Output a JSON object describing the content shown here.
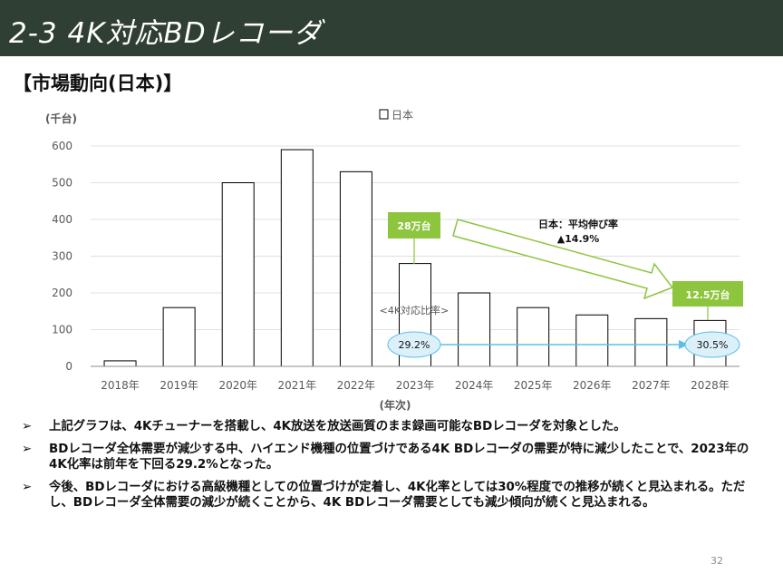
{
  "header": {
    "title": "2-3 4K対応BDレコーダ"
  },
  "section": {
    "title": "【市場動向(日本)】"
  },
  "chart_data": {
    "type": "bar",
    "categories": [
      "2018年",
      "2019年",
      "2020年",
      "2021年",
      "2022年",
      "2023年",
      "2024年",
      "2025年",
      "2026年",
      "2027年",
      "2028年"
    ],
    "series": [
      {
        "name": "日本",
        "values": [
          15,
          160,
          500,
          590,
          530,
          280,
          200,
          160,
          140,
          130,
          125
        ]
      }
    ],
    "ylabel": "(千台)",
    "xlabel": "(年次)",
    "ylim": [
      0,
      600
    ],
    "yticks": [
      0,
      100,
      200,
      300,
      400,
      500,
      600
    ],
    "legend": {
      "position": "top-center",
      "label": "日本"
    },
    "grid": true,
    "colors": {
      "bar_fill": "#ffffff",
      "bar_stroke": "#000000",
      "callout": "#8dc53e",
      "ratio_line": "#5bbfe8",
      "ratio_ellipse": "#dcf0fa",
      "grid": "#e0e0e0"
    },
    "annotations": {
      "callout_2023": "28万台",
      "callout_2028": "12.5万台",
      "growth_label": "日本：平均伸び率",
      "growth_value": "▲14.9%",
      "ratio_label": "<4K対応比率>",
      "ratio_start": "29.2%",
      "ratio_end": "30.5%"
    }
  },
  "bullets": [
    {
      "marker": "➢",
      "text": "上記グラフは、4Kチューナーを搭載し、4K放送を放送画質のまま録画可能なBDレコーダを対象とした。"
    },
    {
      "marker": "➢",
      "text": "BDレコーダ全体需要が減少する中、ハイエンド機種の位置づけである4K BDレコーダの需要が特に減少したことで、2023年の4K化率は前年を下回る29.2%となった。"
    },
    {
      "marker": "➢",
      "text": "今後、BDレコーダにおける高級機種としての位置づけが定着し、4K化率としては30%程度での推移が続くと見込まれる。ただし、BDレコーダ全体需要の減少が続くことから、4K BDレコーダ需要としても減少傾向が続くと見込まれる。"
    }
  ],
  "footer": {
    "page": "32"
  }
}
